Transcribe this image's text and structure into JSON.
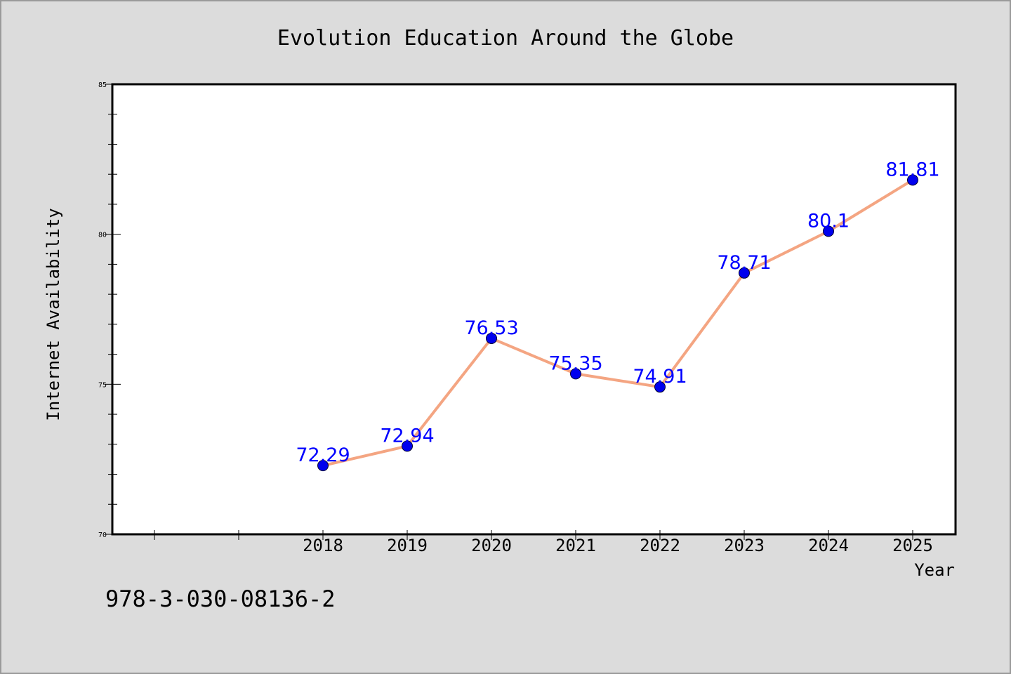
{
  "chart_data": {
    "type": "line",
    "title": "Evolution Education Around the Globe",
    "xlabel": "Year",
    "ylabel": "Internet Availability",
    "categories": [
      "2018",
      "2019",
      "2020",
      "2021",
      "2022",
      "2023",
      "2024",
      "2025"
    ],
    "series": [
      {
        "values": [
          72.29,
          72.94,
          76.53,
          75.35,
          74.91,
          78.71,
          80.1,
          81.81
        ]
      }
    ],
    "data_labels": [
      "72.29",
      "72.94",
      "76.53",
      "75.35",
      "74.91",
      "78.71",
      "80.1",
      "81.81"
    ],
    "ylim": [
      70,
      85
    ],
    "yticks": [
      "70",
      "75",
      "80",
      "85"
    ],
    "grid": false,
    "colors": {
      "line": "#f4a582",
      "marker": "#0000ee",
      "label": "#0000ff",
      "background": "#dcdcdc"
    }
  },
  "footer_text": "978-3-030-08136-2"
}
